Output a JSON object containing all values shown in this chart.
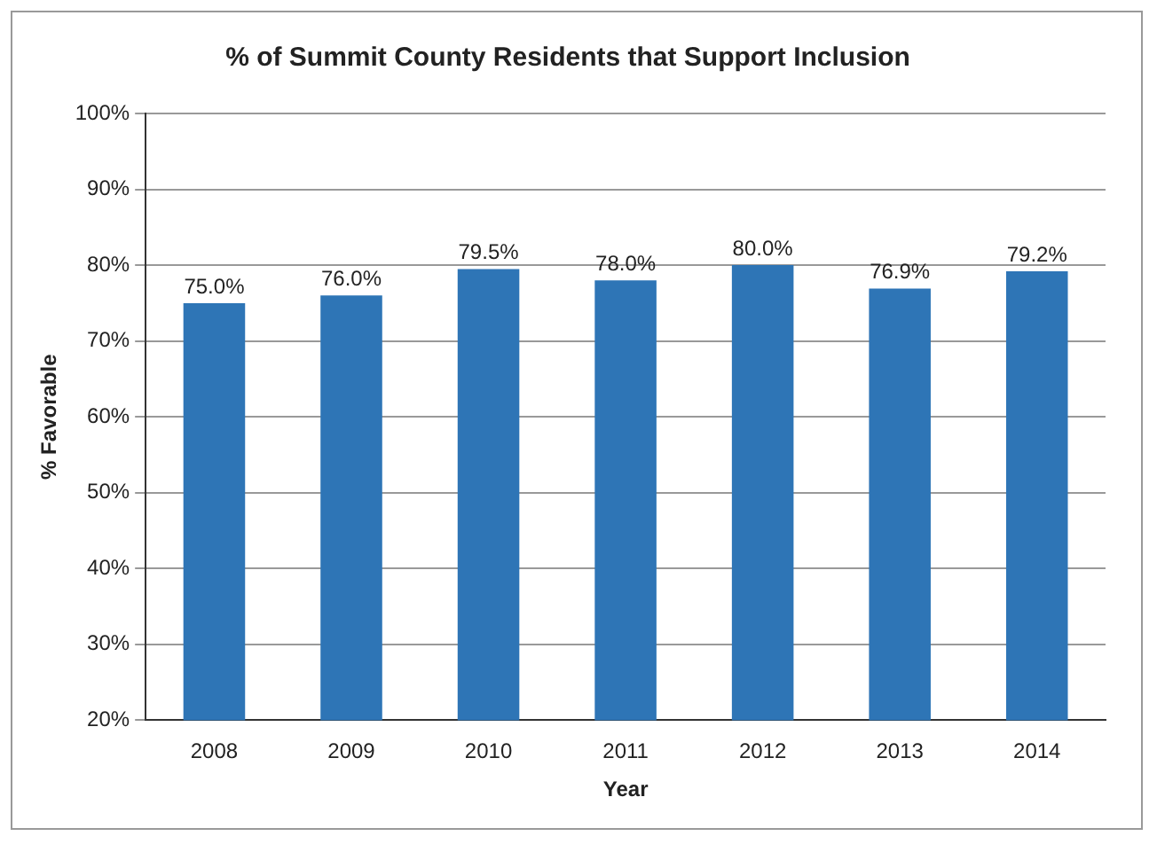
{
  "chart_data": {
    "type": "bar",
    "title": "% of Summit County Residents that Support Inclusion",
    "xlabel": "Year",
    "ylabel": "% Favorable",
    "categories": [
      "2008",
      "2009",
      "2010",
      "2011",
      "2012",
      "2013",
      "2014"
    ],
    "values": [
      75.0,
      76.0,
      79.5,
      78.0,
      80.0,
      76.9,
      79.2
    ],
    "value_labels": [
      "75.0%",
      "76.0%",
      "79.5%",
      "78.0%",
      "80.0%",
      "76.9%",
      "79.2%"
    ],
    "color": "#2e75b6",
    "ylim": [
      20,
      100
    ],
    "yticks": [
      {
        "value": 20,
        "label": "20%"
      },
      {
        "value": 30,
        "label": "30%"
      },
      {
        "value": 40,
        "label": "40%"
      },
      {
        "value": 50,
        "label": "50%"
      },
      {
        "value": 60,
        "label": "60%"
      },
      {
        "value": 70,
        "label": "70%"
      },
      {
        "value": 80,
        "label": "80%"
      },
      {
        "value": 90,
        "label": "90%"
      },
      {
        "value": 100,
        "label": "100%"
      }
    ],
    "grid": "y",
    "legend": false
  }
}
